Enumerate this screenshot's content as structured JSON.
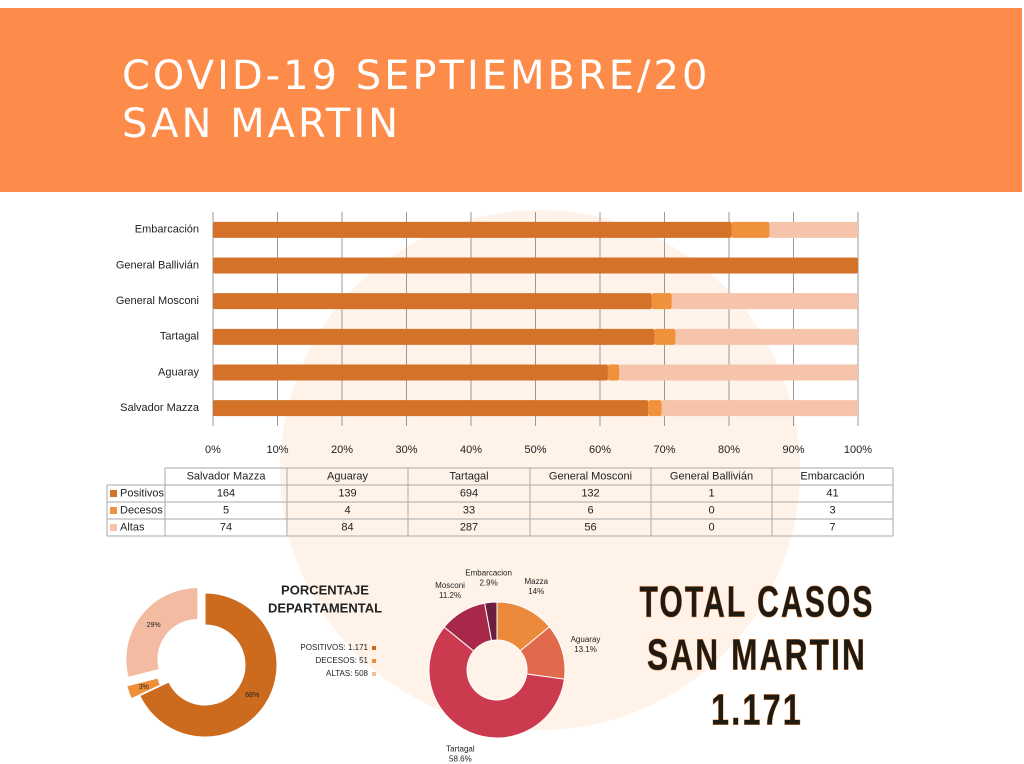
{
  "header": {
    "title": [
      "COVID-19 SEPTIEMBRE/20",
      "SAN MARTIN"
    ]
  },
  "chart_data": [
    {
      "type": "stacked-bar-100",
      "categories": [
        "Salvador Mazza",
        "Aguaray",
        "Tartagal",
        "General Mosconi",
        "General Ballivián",
        "Embarcación"
      ],
      "series": [
        {
          "name": "Positivos",
          "color": "#d4722a",
          "values": [
            164,
            139,
            694,
            132,
            1,
            41
          ]
        },
        {
          "name": "Decesos",
          "color": "#f0923c",
          "values": [
            5,
            4,
            33,
            6,
            0,
            3
          ]
        },
        {
          "name": "Altas",
          "color": "#f6c4aa",
          "values": [
            74,
            84,
            287,
            56,
            0,
            7
          ]
        }
      ],
      "xlim": [
        0,
        100
      ],
      "xticks": [
        {
          "value": 0,
          "label": "0%"
        },
        {
          "value": 10,
          "label": "10%"
        },
        {
          "value": 20,
          "label": "20%"
        },
        {
          "value": 30,
          "label": "30%"
        },
        {
          "value": 40,
          "label": "40%"
        },
        {
          "value": 50,
          "label": "50%"
        },
        {
          "value": 60,
          "label": "60%"
        },
        {
          "value": 70,
          "label": "70%"
        },
        {
          "value": 80,
          "label": "80%"
        },
        {
          "value": 90,
          "label": "90%"
        },
        {
          "value": 100,
          "label": "100%"
        }
      ],
      "grid": true
    },
    {
      "type": "donut",
      "title": [
        "PORCENTAJE",
        "DEPARTAMENTAL"
      ],
      "categories": [
        "POSITIVOS: 1.171",
        "DECESOS: 51",
        "ALTAS: 508"
      ],
      "values": [
        68,
        3,
        29
      ],
      "value_labels": [
        "68%",
        "3%",
        "29%"
      ],
      "colors": [
        "#cc6a1e",
        "#ef8f3a",
        "#f3bba2"
      ]
    },
    {
      "type": "donut",
      "categories": [
        "Mazza",
        "Aguaray",
        "Tartagal",
        "Mosconi",
        "Embarcacion"
      ],
      "values": [
        14,
        13.1,
        58.6,
        11.2,
        2.9
      ],
      "value_labels": [
        "14%",
        "13.1%",
        "58.6%",
        "11.2%",
        "2.9%"
      ],
      "colors": [
        "#ec8a3c",
        "#e26a4c",
        "#cc3a50",
        "#a8284a",
        "#6a1f40"
      ]
    }
  ],
  "total": {
    "lines": [
      "TOTAL CASOS",
      "SAN MARTIN",
      "1.171"
    ]
  }
}
